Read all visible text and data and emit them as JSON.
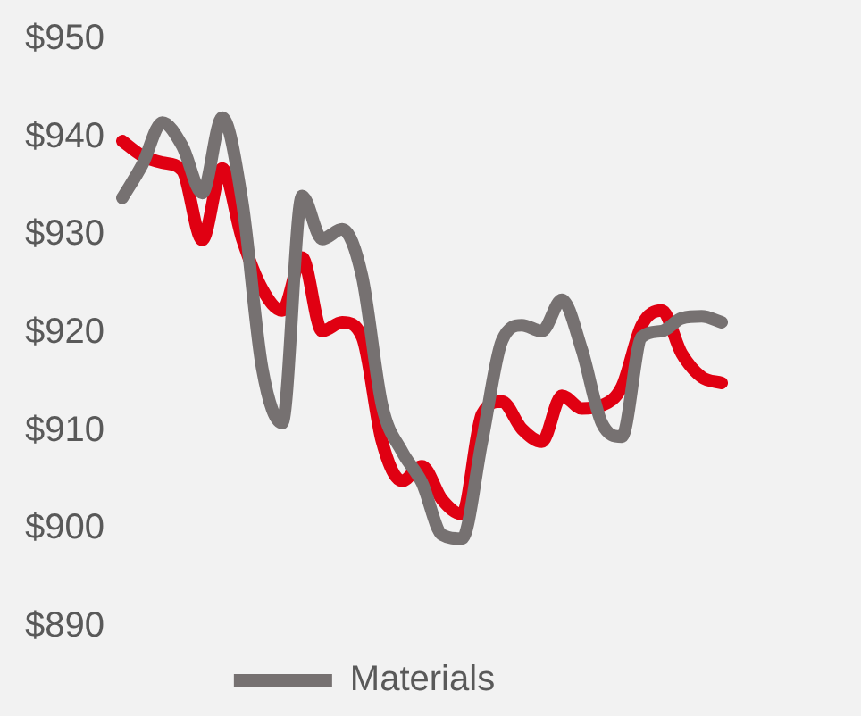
{
  "chart_data": {
    "type": "line",
    "categories": [
      null,
      null,
      null,
      null,
      null,
      null,
      null,
      null,
      null,
      null,
      null,
      null,
      null,
      null,
      null,
      null,
      null,
      null,
      null,
      null,
      null,
      null,
      null,
      null,
      null,
      null,
      null,
      null,
      null,
      null,
      null
    ],
    "series": [
      {
        "name": "Materials",
        "color": "#767171",
        "values": [
          933.8,
          937.2,
          941.5,
          939.1,
          934.3,
          942,
          933.4,
          916.4,
          910.8,
          934,
          929.6,
          930.6,
          925.8,
          912.6,
          907.9,
          904.7,
          899.4,
          899,
          908.9,
          919.2,
          920.8,
          920.2,
          923.4,
          918.3,
          910.8,
          909.4,
          919.6,
          920.2,
          921.5,
          921.7,
          921.1
        ]
      },
      {
        "color": "#e00012",
        "values": [
          939.6,
          938.1,
          937.4,
          936.6,
          929.5,
          936.8,
          929.6,
          924.5,
          922.3,
          927.7,
          920.2,
          921.1,
          919.6,
          908.9,
          904.9,
          906.4,
          903,
          901.5,
          911.7,
          913,
          910.2,
          908.9,
          913.6,
          912.3,
          912.6,
          914.5,
          920.8,
          922.3,
          917.9,
          915.5,
          914.9
        ]
      }
    ],
    "ylim": [
      890,
      950
    ],
    "yticks": [
      {
        "value": 890,
        "label": "$890"
      },
      {
        "value": 900,
        "label": "$900"
      },
      {
        "value": 910,
        "label": "$910"
      },
      {
        "value": 920,
        "label": "$920"
      },
      {
        "value": 930,
        "label": "$930"
      },
      {
        "value": 940,
        "label": "$940"
      },
      {
        "value": 950,
        "label": "$950"
      }
    ],
    "tick_labels": "y",
    "grid": false,
    "legend": "bottom",
    "marker": "none",
    "line_style": "solid"
  }
}
